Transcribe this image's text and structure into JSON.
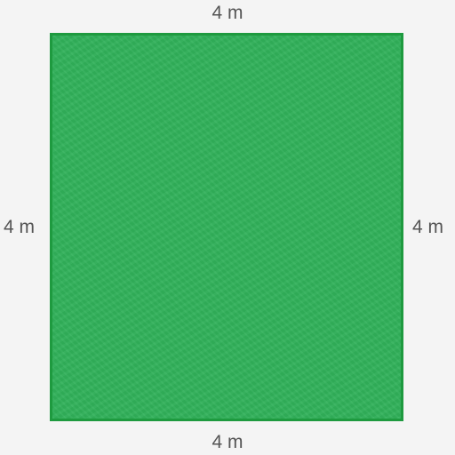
{
  "shape": {
    "type": "square",
    "fill_color": "#31b15a",
    "border_color": "#1e9a3f"
  },
  "labels": {
    "top": "4 m",
    "bottom": "4 m",
    "left": "4 m",
    "right": "4 m"
  }
}
